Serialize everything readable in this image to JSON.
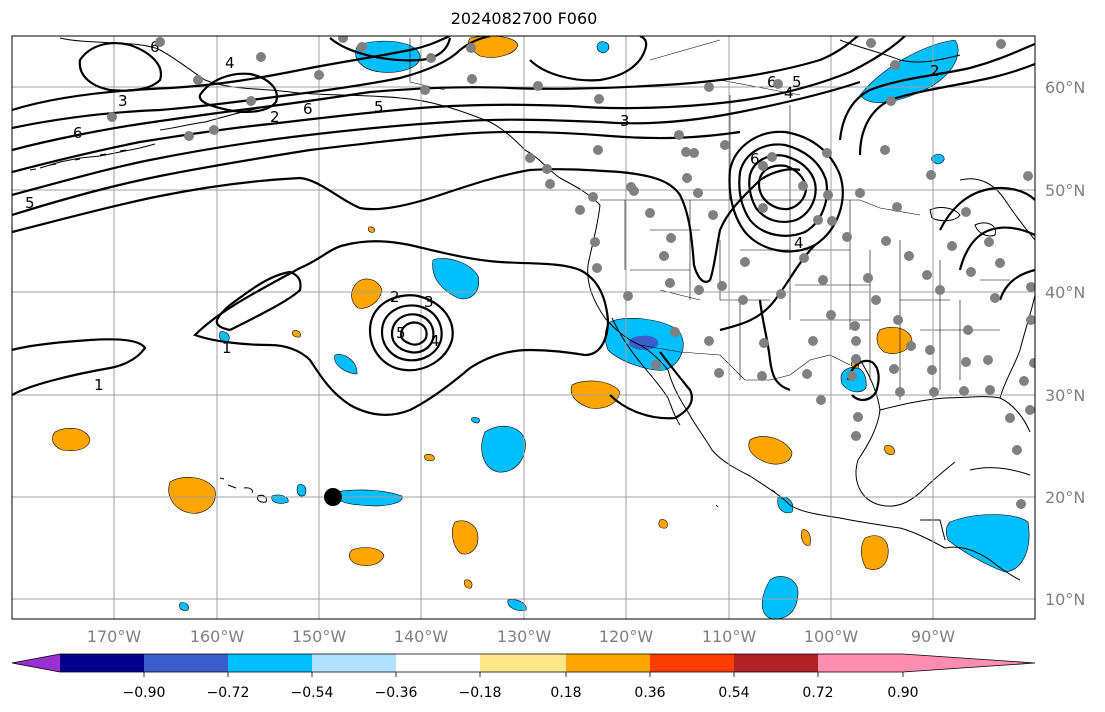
{
  "title": "2024082700 F060",
  "lon_labels": [
    "170°W",
    "160°W",
    "150°W",
    "140°W",
    "130°W",
    "120°W",
    "110°W",
    "100°W",
    "90°W"
  ],
  "lat_labels": [
    "60°N",
    "50°N",
    "40°N",
    "30°N",
    "20°N",
    "10°N"
  ],
  "colorbar": {
    "ticks": [
      "−0.90",
      "−0.72",
      "−0.54",
      "−0.36",
      "−0.18",
      "0.18",
      "0.36",
      "0.54",
      "0.72",
      "0.90"
    ],
    "colors": [
      "#9b30d0",
      "#00008b",
      "#3a5fcd",
      "#00bfff",
      "#b0e2ff",
      "#ffffff",
      "#ffe88a",
      "#ffa500",
      "#ff3d00",
      "#b22222",
      "#ff8db0"
    ]
  },
  "contour_labels": [
    "3",
    "6",
    "5",
    "4",
    "6",
    "2",
    "6",
    "5",
    "3",
    "6",
    "5",
    "4",
    "2",
    "3",
    "5",
    "4",
    "1",
    "1",
    "2",
    "6",
    "4"
  ],
  "marker": {
    "label": "black-dot",
    "color": "#000000"
  },
  "station_color": "#808080",
  "land_color": "#ffffff",
  "grid_color": "#a0a0a0"
}
